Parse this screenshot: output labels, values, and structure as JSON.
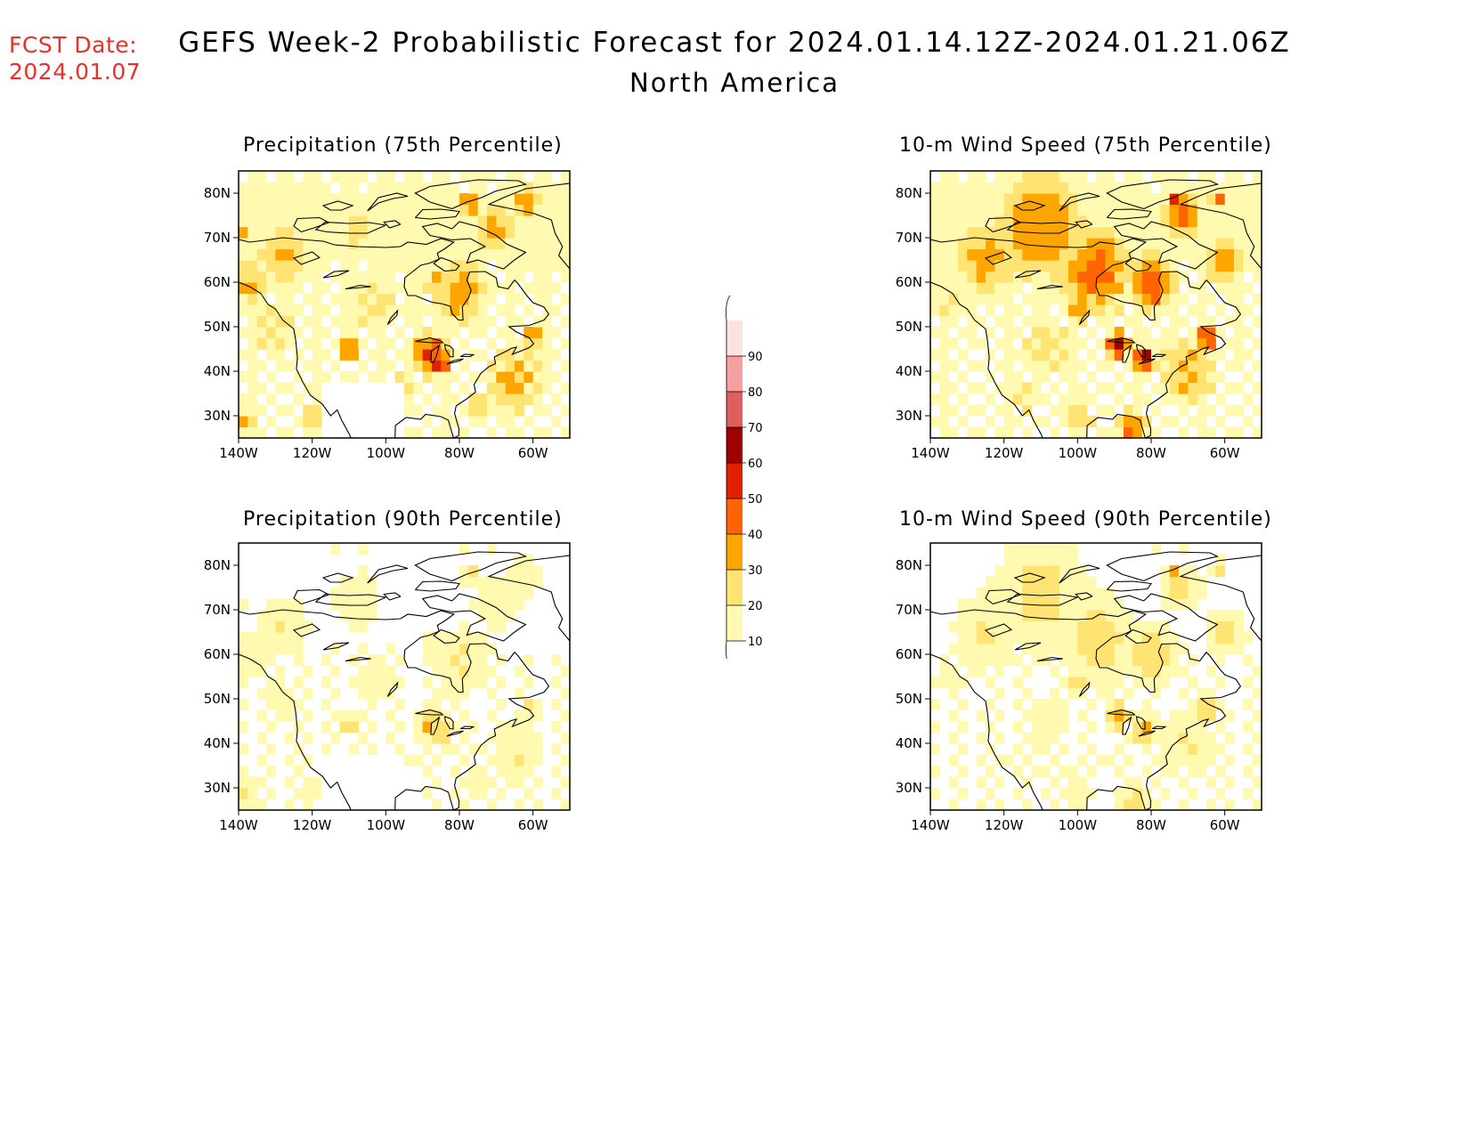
{
  "header": {
    "fcst_label": "FCST Date:",
    "fcst_date": "2024.01.07",
    "title": "GEFS Week-2 Probabilistic Forecast for 2024.01.14.12Z-2024.01.21.06Z",
    "subtitle": "North America"
  },
  "panels": [
    {
      "id": "p75",
      "title": "Precipitation (75th Percentile)",
      "field": "precip",
      "percentile": 75,
      "intensity": 1.0
    },
    {
      "id": "w75",
      "title": "10-m Wind Speed (75th Percentile)",
      "field": "wind",
      "percentile": 75,
      "intensity": 1.0
    },
    {
      "id": "p90",
      "title": "Precipitation (90th Percentile)",
      "field": "precip",
      "percentile": 90,
      "intensity": 0.55
    },
    {
      "id": "w90",
      "title": "10-m Wind Speed (90th Percentile)",
      "field": "wind",
      "percentile": 90,
      "intensity": 0.55
    }
  ],
  "axes": {
    "lon_labels": [
      "140W",
      "120W",
      "100W",
      "80W",
      "60W"
    ],
    "lon_values": [
      -140,
      -120,
      -100,
      -80,
      -60
    ],
    "lat_labels": [
      "80N",
      "70N",
      "60N",
      "50N",
      "40N",
      "30N"
    ],
    "lat_values": [
      80,
      70,
      60,
      50,
      40,
      30
    ],
    "lon_range": [
      -140,
      -50
    ],
    "lat_range": [
      25,
      85
    ]
  },
  "colorbar": {
    "levels": [
      "10",
      "20",
      "30",
      "40",
      "50",
      "60",
      "70",
      "80",
      "90"
    ],
    "colors": [
      "#fffab0",
      "#ffe373",
      "#ffa500",
      "#ff6400",
      "#e02000",
      "#a00000",
      "#dd5f5f",
      "#f5a0a0",
      "#ffe1e1"
    ]
  }
}
